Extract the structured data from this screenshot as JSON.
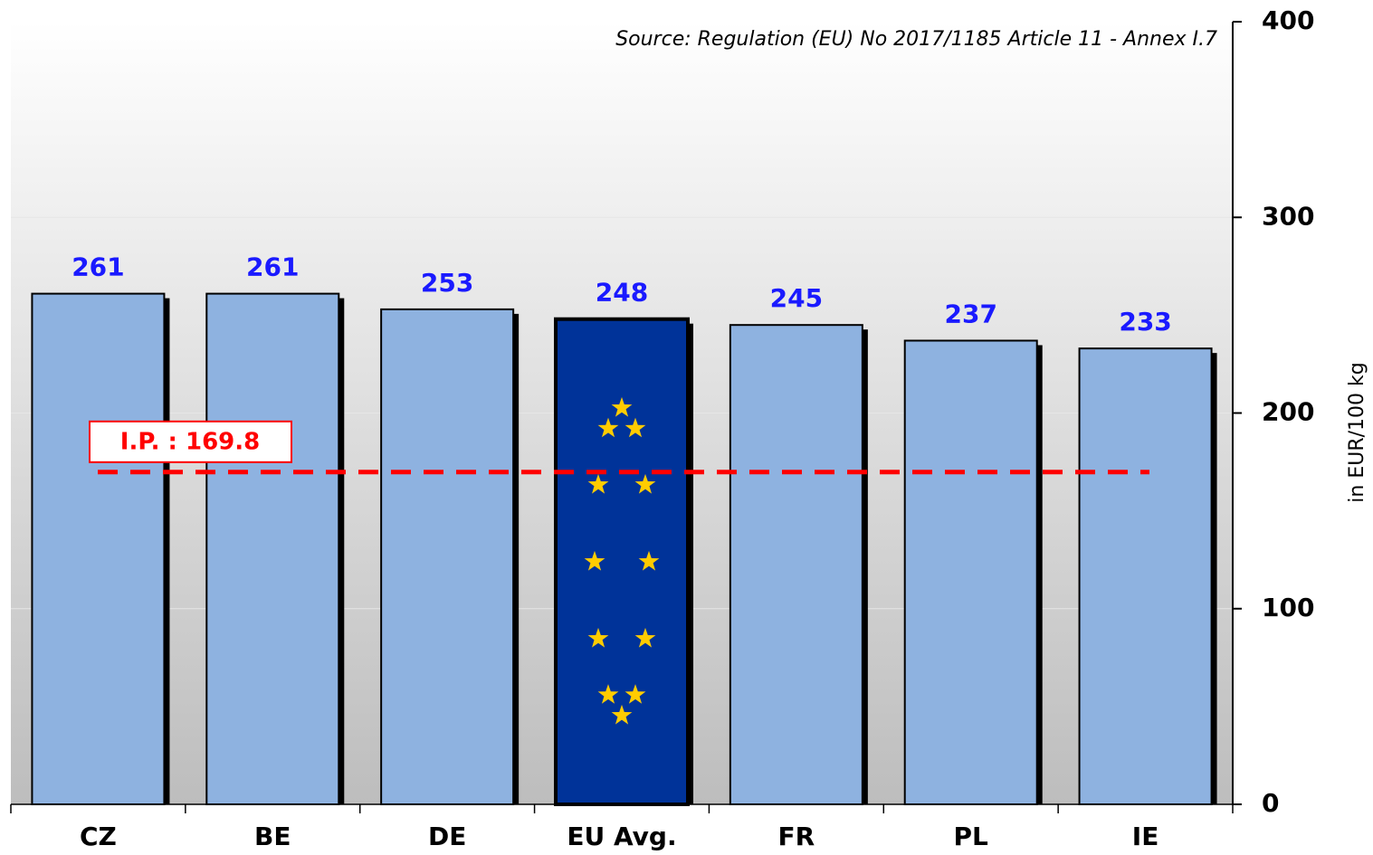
{
  "chart_data": {
    "type": "bar",
    "source": "Source: Regulation (EU) No 2017/1185 Article 11 - Annex I.7",
    "y_axis_label": "in EUR/100 kg",
    "categories": [
      "CZ",
      "BE",
      "DE",
      "EU Avg.",
      "FR",
      "PL",
      "IE"
    ],
    "values": [
      261,
      261,
      253,
      248,
      245,
      237,
      233
    ],
    "colors": [
      "#8eb2e0",
      "#8eb2e0",
      "#8eb2e0",
      "#003399",
      "#8eb2e0",
      "#8eb2e0",
      "#8eb2e0"
    ],
    "value_label_color": "#1a1aff",
    "ylim": [
      0,
      400
    ],
    "yticks": [
      0,
      100,
      200,
      300,
      400
    ],
    "grid": true,
    "reference_line": {
      "label": "I.P. : 169.8",
      "value": 169.8,
      "color": "#ff0000"
    }
  }
}
